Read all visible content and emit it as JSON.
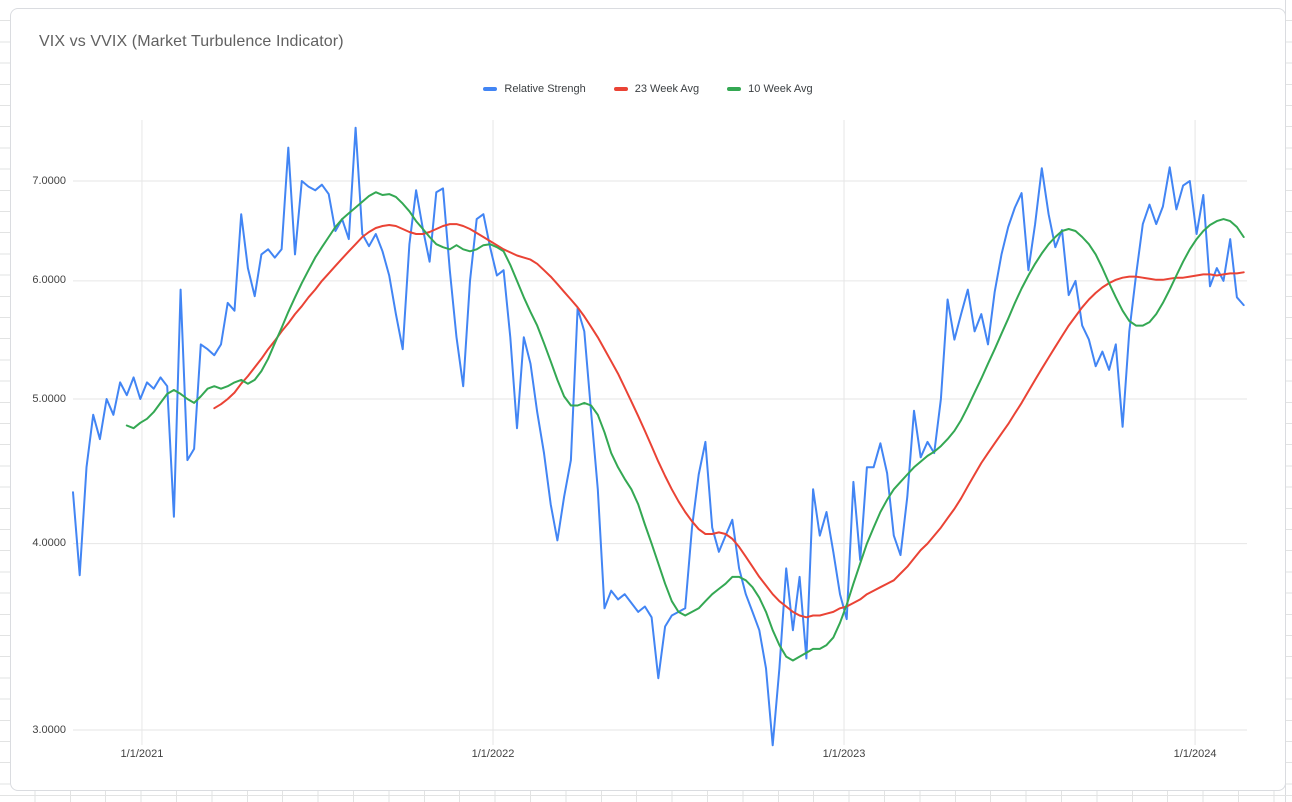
{
  "page": {
    "background": "spreadsheet-grid",
    "card_border_color": "#dadce0",
    "grid_color": "#e6e6e6",
    "axis_label_color": "#424242",
    "title_color": "#616161"
  },
  "chart_data": {
    "type": "line",
    "title": "VIX vs VVIX (Market Turbulence Indicator)",
    "legend_position": "top-center",
    "grid": true,
    "y_axis": {
      "scale": "log",
      "tick_values": [
        3,
        4,
        5,
        6,
        7
      ],
      "tick_labels": [
        "3.0000",
        "4.0000",
        "5.0000",
        "6.0000",
        "7.0000"
      ],
      "range_approx": [
        2.9,
        7.7
      ]
    },
    "x_axis": {
      "tick_labels": [
        "1/1/2021",
        "1/1/2022",
        "1/1/2023",
        "1/1/2024"
      ],
      "tick_weeks": [
        10.25,
        62.43,
        114.6,
        166.78
      ],
      "note": "weekly samples, week index 0-174"
    },
    "series": [
      {
        "name": "Relative Strengh",
        "color": "#4285f4",
        "values": [
          4.33,
          3.81,
          4.5,
          4.88,
          4.7,
          5.0,
          4.88,
          5.13,
          5.03,
          5.17,
          5.0,
          5.13,
          5.08,
          5.17,
          5.1,
          4.17,
          5.92,
          4.55,
          4.63,
          5.44,
          5.4,
          5.35,
          5.44,
          5.8,
          5.73,
          6.65,
          6.12,
          5.86,
          6.25,
          6.3,
          6.22,
          6.3,
          7.37,
          6.25,
          7.0,
          6.94,
          6.9,
          6.96,
          6.86,
          6.48,
          6.6,
          6.4,
          7.6,
          6.45,
          6.33,
          6.45,
          6.28,
          6.05,
          5.7,
          5.4,
          6.35,
          6.9,
          6.5,
          6.18,
          6.88,
          6.92,
          6.1,
          5.5,
          5.1,
          6.0,
          6.6,
          6.65,
          6.32,
          6.05,
          6.1,
          5.5,
          4.78,
          5.5,
          5.28,
          4.9,
          4.6,
          4.25,
          4.02,
          4.3,
          4.55,
          5.75,
          5.55,
          4.9,
          4.35,
          3.62,
          3.72,
          3.67,
          3.7,
          3.65,
          3.6,
          3.63,
          3.57,
          3.25,
          3.52,
          3.58,
          3.6,
          3.62,
          4.1,
          4.45,
          4.68,
          4.1,
          3.95,
          4.05,
          4.15,
          3.85,
          3.7,
          3.6,
          3.5,
          3.3,
          2.93,
          3.3,
          3.85,
          3.5,
          3.8,
          3.35,
          4.35,
          4.05,
          4.2,
          3.95,
          3.7,
          3.56,
          4.4,
          3.9,
          4.5,
          4.5,
          4.67,
          4.46,
          4.05,
          3.93,
          4.3,
          4.91,
          4.57,
          4.68,
          4.6,
          5.0,
          5.83,
          5.48,
          5.7,
          5.92,
          5.55,
          5.7,
          5.44,
          5.9,
          6.25,
          6.52,
          6.72,
          6.87,
          6.1,
          6.55,
          7.14,
          6.65,
          6.32,
          6.49,
          5.87,
          6.0,
          5.6,
          5.48,
          5.26,
          5.38,
          5.23,
          5.44,
          4.79,
          5.55,
          6.05,
          6.55,
          6.75,
          6.55,
          6.73,
          7.15,
          6.7,
          6.95,
          7.0,
          6.45,
          6.85,
          5.95,
          6.12,
          6.0,
          6.4,
          5.85,
          5.78
        ]
      },
      {
        "name": "23 Week Avg",
        "color": "#ea4335",
        "values": [
          null,
          null,
          null,
          null,
          null,
          null,
          null,
          null,
          null,
          null,
          null,
          null,
          null,
          null,
          null,
          null,
          null,
          null,
          null,
          null,
          null,
          4.93,
          4.96,
          5.0,
          5.05,
          5.12,
          5.18,
          5.25,
          5.32,
          5.4,
          5.47,
          5.55,
          5.62,
          5.7,
          5.77,
          5.85,
          5.92,
          6.0,
          6.07,
          6.14,
          6.21,
          6.28,
          6.35,
          6.42,
          6.47,
          6.51,
          6.53,
          6.54,
          6.53,
          6.5,
          6.47,
          6.45,
          6.45,
          6.47,
          6.5,
          6.53,
          6.55,
          6.55,
          6.53,
          6.5,
          6.46,
          6.42,
          6.38,
          6.34,
          6.3,
          6.27,
          6.24,
          6.22,
          6.2,
          6.16,
          6.1,
          6.04,
          5.97,
          5.9,
          5.83,
          5.76,
          5.68,
          5.59,
          5.5,
          5.4,
          5.3,
          5.2,
          5.09,
          4.98,
          4.87,
          4.76,
          4.65,
          4.54,
          4.44,
          4.35,
          4.27,
          4.2,
          4.14,
          4.09,
          4.06,
          4.06,
          4.07,
          4.06,
          4.03,
          3.98,
          3.92,
          3.86,
          3.8,
          3.75,
          3.7,
          3.66,
          3.63,
          3.6,
          3.58,
          3.57,
          3.58,
          3.58,
          3.59,
          3.6,
          3.62,
          3.63,
          3.65,
          3.67,
          3.7,
          3.72,
          3.74,
          3.76,
          3.78,
          3.82,
          3.86,
          3.91,
          3.96,
          4.0,
          4.05,
          4.1,
          4.16,
          4.22,
          4.29,
          4.37,
          4.45,
          4.53,
          4.6,
          4.67,
          4.74,
          4.81,
          4.89,
          4.97,
          5.06,
          5.15,
          5.24,
          5.33,
          5.42,
          5.51,
          5.6,
          5.68,
          5.76,
          5.83,
          5.89,
          5.94,
          5.98,
          6.01,
          6.03,
          6.04,
          6.04,
          6.03,
          6.02,
          6.01,
          6.01,
          6.02,
          6.03,
          6.03,
          6.04,
          6.05,
          6.06,
          6.06,
          6.05,
          6.06,
          6.07,
          6.07,
          6.08
        ]
      },
      {
        "name": "10 Week Avg",
        "color": "#34a853",
        "values": [
          null,
          null,
          null,
          null,
          null,
          null,
          null,
          null,
          4.8,
          4.78,
          4.82,
          4.85,
          4.9,
          4.97,
          5.04,
          5.07,
          5.04,
          5.0,
          4.97,
          5.02,
          5.08,
          5.1,
          5.08,
          5.1,
          5.13,
          5.15,
          5.12,
          5.15,
          5.22,
          5.32,
          5.45,
          5.58,
          5.72,
          5.85,
          5.98,
          6.1,
          6.22,
          6.32,
          6.42,
          6.52,
          6.6,
          6.66,
          6.72,
          6.78,
          6.84,
          6.88,
          6.85,
          6.86,
          6.83,
          6.76,
          6.68,
          6.58,
          6.5,
          6.42,
          6.35,
          6.32,
          6.3,
          6.34,
          6.3,
          6.28,
          6.3,
          6.34,
          6.35,
          6.32,
          6.28,
          6.15,
          6.0,
          5.85,
          5.72,
          5.6,
          5.45,
          5.3,
          5.15,
          5.02,
          4.95,
          4.95,
          4.97,
          4.95,
          4.88,
          4.75,
          4.6,
          4.5,
          4.42,
          4.35,
          4.25,
          4.12,
          4.0,
          3.88,
          3.76,
          3.66,
          3.6,
          3.58,
          3.6,
          3.62,
          3.66,
          3.7,
          3.73,
          3.76,
          3.8,
          3.8,
          3.78,
          3.74,
          3.68,
          3.6,
          3.5,
          3.42,
          3.36,
          3.34,
          3.36,
          3.38,
          3.4,
          3.4,
          3.42,
          3.46,
          3.54,
          3.64,
          3.76,
          3.88,
          4.0,
          4.1,
          4.2,
          4.28,
          4.35,
          4.4,
          4.45,
          4.5,
          4.54,
          4.58,
          4.61,
          4.65,
          4.7,
          4.76,
          4.84,
          4.94,
          5.05,
          5.16,
          5.28,
          5.4,
          5.53,
          5.66,
          5.8,
          5.93,
          6.05,
          6.16,
          6.26,
          6.35,
          6.42,
          6.48,
          6.5,
          6.48,
          6.42,
          6.35,
          6.25,
          6.12,
          5.98,
          5.85,
          5.73,
          5.64,
          5.6,
          5.6,
          5.63,
          5.7,
          5.8,
          5.92,
          6.05,
          6.18,
          6.3,
          6.4,
          6.48,
          6.54,
          6.58,
          6.6,
          6.58,
          6.52,
          6.42
        ]
      }
    ]
  }
}
